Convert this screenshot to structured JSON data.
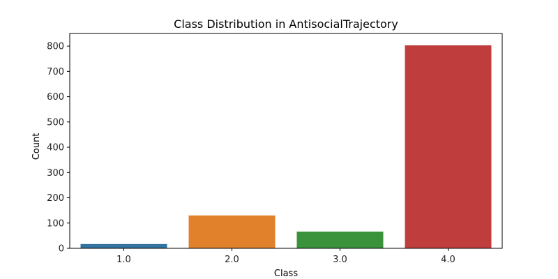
{
  "chart_data": {
    "type": "bar",
    "title": "Class Distribution in AntisocialTrajectory",
    "xlabel": "Class",
    "ylabel": "Count",
    "categories": [
      "1.0",
      "2.0",
      "3.0",
      "4.0"
    ],
    "values": [
      17,
      130,
      66,
      803
    ],
    "ylim": [
      0,
      850
    ],
    "yticks": [
      0,
      100,
      200,
      300,
      400,
      500,
      600,
      700,
      800
    ],
    "colors": [
      "#3274a1",
      "#e1812c",
      "#3a923a",
      "#c03d3e"
    ],
    "grid": false,
    "legend": "none"
  }
}
